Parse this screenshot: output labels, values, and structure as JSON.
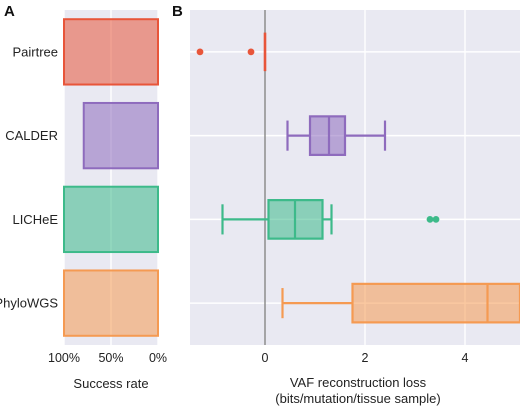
{
  "chart_data": [
    {
      "panel": "A",
      "type": "bar",
      "orientation": "horizontal",
      "categories": [
        "Pairtree",
        "CALDER",
        "LICHeE",
        "PhyloWGS"
      ],
      "values": [
        1.0,
        0.79,
        1.0,
        1.0
      ],
      "xlabel": "Success rate",
      "xlim": [
        1.0,
        0.0
      ],
      "xticks": [
        1.0,
        0.5,
        0.0
      ],
      "xtick_labels": [
        "100%",
        "50%",
        "0%"
      ],
      "grid": true
    },
    {
      "panel": "B",
      "type": "box",
      "orientation": "horizontal",
      "categories": [
        "Pairtree",
        "CALDER",
        "LICHeE",
        "PhyloWGS"
      ],
      "series": [
        {
          "category": "Pairtree",
          "whislo": 0.0,
          "q1": 0.0,
          "med": 0.0,
          "q3": 0.0,
          "whishi": 0.0,
          "fliers": [
            -1.3,
            -0.28
          ]
        },
        {
          "category": "CALDER",
          "whislo": 0.45,
          "q1": 0.9,
          "med": 1.28,
          "q3": 1.6,
          "whishi": 2.4,
          "fliers": []
        },
        {
          "category": "LICHeE",
          "whislo": -0.85,
          "q1": 0.07,
          "med": 0.6,
          "q3": 1.15,
          "whishi": 1.33,
          "fliers": [
            3.3,
            3.42
          ]
        },
        {
          "category": "PhyloWGS",
          "whislo": 0.35,
          "q1": 1.75,
          "med": 4.45,
          "q3": 5.2,
          "whishi": 5.2,
          "fliers": []
        }
      ],
      "xlabel": "VAF reconstruction loss",
      "xlabel_line2": "(bits/mutation/tissue sample)",
      "xlim": [
        -1.5,
        5.1
      ],
      "xticks": [
        0,
        2,
        4
      ],
      "xtick_labels": [
        "0",
        "2",
        "4"
      ],
      "reference_line_x": 0,
      "grid": true
    }
  ],
  "panel_labels": {
    "a": "A",
    "b": "B"
  },
  "colors": {
    "pairtree": "#e8553a",
    "calder": "#8e6bbd",
    "lichee": "#3dba8a",
    "phylowgs": "#f59a52",
    "panel_bg": "#e9e9f2",
    "grid": "#ffffff",
    "axis_text": "#222222",
    "zero_line": "#555555"
  }
}
